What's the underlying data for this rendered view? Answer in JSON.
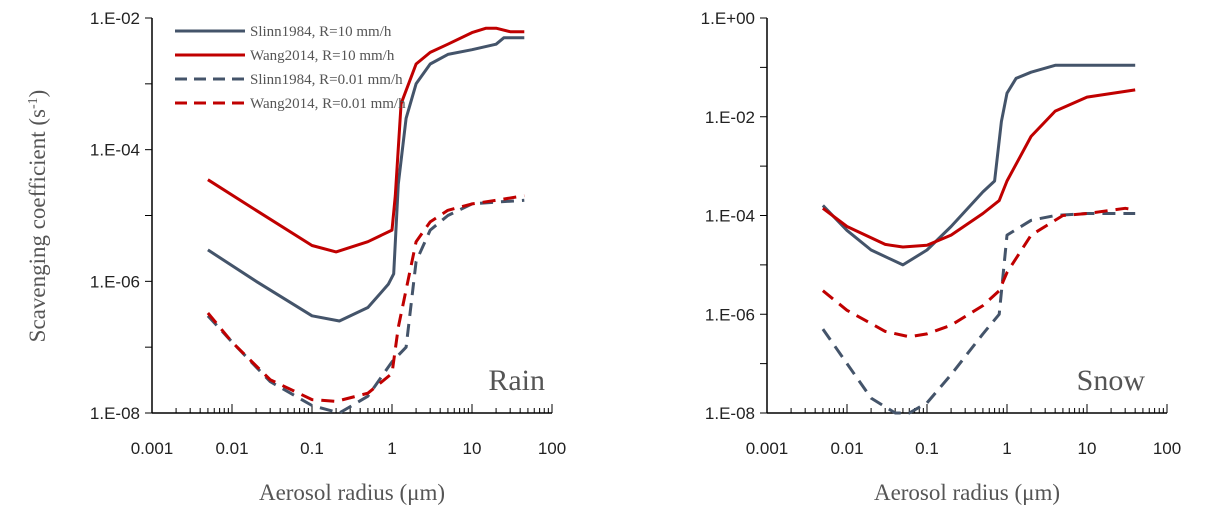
{
  "colors": {
    "slinn": "#44546A",
    "wang": "#C00000",
    "axis": "#000000",
    "text": "#595959"
  },
  "legend": [
    "Slinn1984, R=10 mm/h",
    "Wang2014, R=10 mm/h",
    "Slinn1984, R=0.01 mm/h",
    "Wang2014, R=0.01 mm/h"
  ],
  "chart_data": [
    {
      "type": "line",
      "annotation": "Rain",
      "xlabel": "Aerosol radius (μm)",
      "ylabel": "Scavenging coefficient (s-1)",
      "xscale": "log",
      "yscale": "log",
      "xlim": [
        0.001,
        100
      ],
      "ylim": [
        1e-08,
        0.01
      ],
      "xticks": [
        "0.001",
        "0.01",
        "0.1",
        "1",
        "10",
        "100"
      ],
      "yticks": [
        "1.E-08",
        "1.E-06",
        "1.E-04",
        "1.E-02"
      ],
      "legend_position": "top-left",
      "series": [
        {
          "name": "Slinn1984, R=10 mm/h",
          "color": "#44546A",
          "dash": false,
          "x": [
            0.005,
            0.02,
            0.1,
            0.22,
            0.5,
            0.9,
            1.05,
            1.2,
            1.5,
            2,
            3,
            5,
            10,
            20,
            25,
            45
          ],
          "y": [
            3e-06,
            1e-06,
            3e-07,
            2.5e-07,
            4e-07,
            9e-07,
            1.3e-06,
            3e-05,
            0.0003,
            0.001,
            0.002,
            0.0028,
            0.0033,
            0.004,
            0.005,
            0.005
          ]
        },
        {
          "name": "Wang2014, R=10 mm/h",
          "color": "#C00000",
          "dash": false,
          "x": [
            0.005,
            0.02,
            0.1,
            0.2,
            0.5,
            1.0,
            1.1,
            1.3,
            2,
            3,
            5,
            10,
            15,
            20,
            30,
            45
          ],
          "y": [
            3.5e-05,
            1.2e-05,
            3.5e-06,
            2.8e-06,
            4e-06,
            6e-06,
            2e-05,
            0.0005,
            0.002,
            0.003,
            0.004,
            0.006,
            0.007,
            0.007,
            0.0062,
            0.0062
          ]
        },
        {
          "name": "Slinn1984, R=0.01 mm/h",
          "color": "#44546A",
          "dash": true,
          "x": [
            0.005,
            0.01,
            0.03,
            0.1,
            0.22,
            0.5,
            1,
            1.5,
            2,
            3,
            5,
            10,
            20,
            45
          ],
          "y": [
            3e-07,
            1.2e-07,
            3e-08,
            1.3e-08,
            1e-08,
            1.8e-08,
            6e-08,
            1e-07,
            2e-06,
            6e-06,
            1e-05,
            1.5e-05,
            1.6e-05,
            1.7e-05
          ]
        },
        {
          "name": "Wang2014, R=0.01 mm/h",
          "color": "#C00000",
          "dash": true,
          "x": [
            0.005,
            0.01,
            0.03,
            0.1,
            0.2,
            0.5,
            1,
            1.2,
            2,
            3,
            5,
            10,
            20,
            45
          ],
          "y": [
            3.3e-07,
            1.2e-07,
            3.2e-08,
            1.6e-08,
            1.5e-08,
            2e-08,
            4e-08,
            2e-07,
            4e-06,
            8e-06,
            1.2e-05,
            1.5e-05,
            1.7e-05,
            2e-05
          ]
        }
      ]
    },
    {
      "type": "line",
      "annotation": "Snow",
      "xlabel": "Aerosol radius (μm)",
      "xscale": "log",
      "yscale": "log",
      "xlim": [
        0.001,
        100
      ],
      "ylim": [
        1e-08,
        1
      ],
      "xticks": [
        "0.001",
        "0.01",
        "0.1",
        "1",
        "10",
        "100"
      ],
      "yticks": [
        "1.E-08",
        "1.E-06",
        "1.E-04",
        "1.E-02",
        "1.E+00"
      ],
      "series": [
        {
          "name": "Slinn1984, R=10 mm/h",
          "color": "#44546A",
          "dash": false,
          "x": [
            0.005,
            0.01,
            0.02,
            0.05,
            0.1,
            0.2,
            0.5,
            0.7,
            0.85,
            1,
            1.3,
            2,
            4,
            10,
            40
          ],
          "y": [
            0.00016,
            5e-05,
            2e-05,
            1e-05,
            2e-05,
            6e-05,
            0.0003,
            0.0005,
            0.008,
            0.03,
            0.06,
            0.08,
            0.11,
            0.11,
            0.11
          ]
        },
        {
          "name": "Wang2014, R=10 mm/h",
          "color": "#C00000",
          "dash": false,
          "x": [
            0.005,
            0.01,
            0.03,
            0.05,
            0.1,
            0.2,
            0.5,
            0.8,
            1,
            2,
            4,
            10,
            40
          ],
          "y": [
            0.00014,
            6e-05,
            2.6e-05,
            2.3e-05,
            2.5e-05,
            4e-05,
            0.00011,
            0.0002,
            0.0005,
            0.004,
            0.013,
            0.025,
            0.035
          ]
        },
        {
          "name": "Slinn1984, R=0.01 mm/h",
          "color": "#44546A",
          "dash": true,
          "x": [
            0.005,
            0.01,
            0.02,
            0.04,
            0.06,
            0.1,
            0.2,
            0.5,
            0.8,
            1,
            2,
            4,
            10,
            40
          ],
          "y": [
            5e-07,
            1e-07,
            2e-08,
            1e-08,
            1e-08,
            1.6e-08,
            6e-08,
            4e-07,
            1e-06,
            4e-05,
            8e-05,
            0.0001,
            0.00011,
            0.00011
          ]
        },
        {
          "name": "Wang2014, R=0.01 mm/h",
          "color": "#C00000",
          "dash": true,
          "x": [
            0.005,
            0.01,
            0.03,
            0.06,
            0.1,
            0.2,
            0.5,
            0.8,
            1,
            2,
            5,
            10,
            30,
            40
          ],
          "y": [
            3e-06,
            1.2e-06,
            4.5e-07,
            3.5e-07,
            4e-07,
            6e-07,
            1.5e-06,
            3e-06,
            7e-06,
            4e-05,
            0.0001,
            0.00011,
            0.00014,
            0.00013
          ]
        }
      ]
    }
  ]
}
